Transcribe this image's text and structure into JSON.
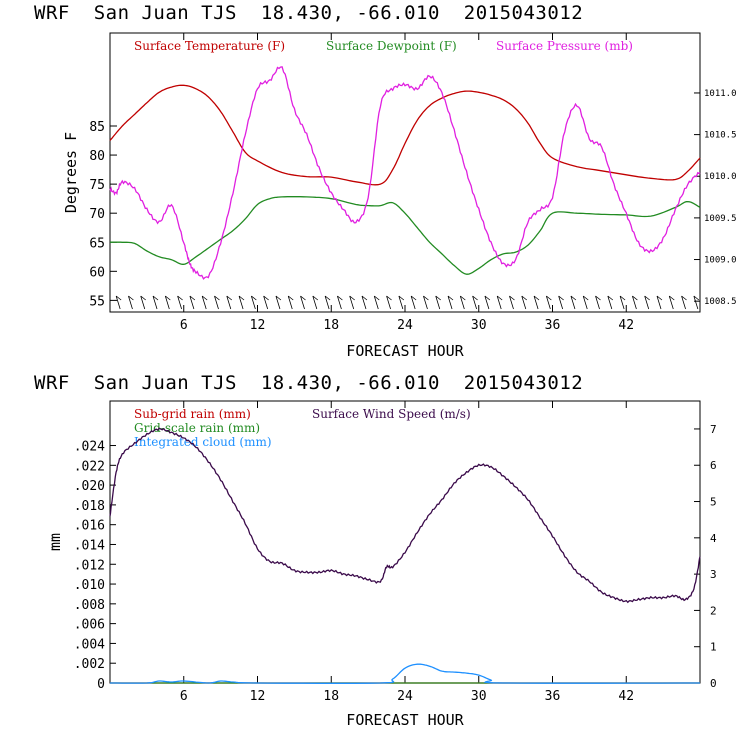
{
  "titles": {
    "top": "WRF  San Juan TJS  18.430, -66.010  2015043012",
    "bottom": "WRF  San Juan TJS  18.430, -66.010  2015043012"
  },
  "colors": {
    "temperature": "#c00000",
    "dewpoint": "#228b22",
    "pressure": "#e020e0",
    "subgrid_rain": "#c00000",
    "gridscale_rain": "#228b22",
    "cloud": "#1e90ff",
    "wind": "#3a0a4a"
  },
  "chart_data": [
    {
      "type": "line",
      "xlabel": "FORECAST HOUR",
      "ylabel": "Degrees F",
      "xlim": [
        0,
        48
      ],
      "ylim": [
        53,
        101
      ],
      "y2lim": [
        1008.37,
        1011.72
      ],
      "xticks": [
        "6",
        "12",
        "18",
        "24",
        "30",
        "36",
        "42"
      ],
      "yticks": [
        "55",
        "60",
        "65",
        "70",
        "75",
        "80",
        "85"
      ],
      "y2ticks": [
        "1008.5",
        "1009.0",
        "1009.5",
        "1010.0",
        "1010.5",
        "1011.0"
      ],
      "wind_barbs": "decorative wind barbs along bottom",
      "series": [
        {
          "name": "Surface Temperature (F)",
          "axis": "left",
          "x": [
            0,
            1,
            2,
            3,
            4,
            5,
            6,
            7,
            8,
            9,
            10,
            11,
            12,
            14,
            16,
            18,
            20,
            22,
            23,
            24,
            25,
            26,
            27,
            28,
            29,
            30,
            31,
            32,
            33,
            34,
            35,
            36,
            38,
            40,
            42,
            44,
            46,
            47,
            48
          ],
          "values": [
            82.5,
            85,
            87,
            89,
            90.8,
            91.7,
            92,
            91.4,
            90,
            87.5,
            84,
            80.5,
            79,
            77,
            76.3,
            76.2,
            75.4,
            75,
            77.5,
            82,
            86,
            88.5,
            89.8,
            90.6,
            91,
            90.8,
            90.3,
            89.5,
            88,
            85.5,
            82,
            79.5,
            78,
            77.3,
            76.6,
            76,
            75.8,
            77.2,
            79.5
          ]
        },
        {
          "name": "Surface Dewpoint (F)",
          "axis": "left",
          "x": [
            0,
            1,
            2,
            3,
            4,
            5,
            6,
            7,
            8,
            9,
            10,
            11,
            12,
            13,
            14,
            16,
            18,
            20,
            21,
            22,
            23,
            24,
            25,
            26,
            27,
            28,
            29,
            30,
            31,
            32,
            33,
            34,
            35,
            36,
            38,
            40,
            42,
            44,
            46,
            47,
            48
          ],
          "values": [
            65,
            65,
            64.8,
            63.5,
            62.5,
            62,
            61.2,
            62.5,
            64,
            65.5,
            67,
            69,
            71.5,
            72.5,
            72.8,
            72.8,
            72.5,
            71.5,
            71.3,
            71.3,
            71.8,
            70,
            67.5,
            65,
            63,
            61,
            59.5,
            60.5,
            62,
            63,
            63.3,
            64.5,
            67,
            70,
            70,
            69.8,
            69.7,
            69.5,
            71,
            72,
            71
          ]
        },
        {
          "name": "Surface Pressure (mb)",
          "axis": "right",
          "x": [
            0,
            0.5,
            1,
            2,
            3,
            4,
            5,
            6,
            6.5,
            7,
            8,
            9,
            10,
            11,
            12,
            13,
            14,
            15,
            16,
            17,
            18,
            19,
            20,
            21,
            22,
            23,
            24,
            25,
            26,
            27,
            28,
            29,
            30,
            31,
            32,
            33,
            34,
            35,
            36,
            37,
            38,
            39,
            40,
            41,
            42,
            43,
            44,
            45,
            46,
            47,
            48
          ],
          "values": [
            1009.85,
            1009.8,
            1009.93,
            1009.85,
            1009.6,
            1009.45,
            1009.65,
            1009.2,
            1008.95,
            1008.85,
            1008.8,
            1009.2,
            1009.8,
            1010.5,
            1011.05,
            1011.15,
            1011.3,
            1010.8,
            1010.5,
            1010.1,
            1009.8,
            1009.6,
            1009.45,
            1009.75,
            1010.85,
            1011.05,
            1011.1,
            1011.05,
            1011.2,
            1011.0,
            1010.55,
            1010.05,
            1009.6,
            1009.2,
            1008.95,
            1009.0,
            1009.45,
            1009.6,
            1009.75,
            1010.55,
            1010.85,
            1010.45,
            1010.35,
            1009.9,
            1009.55,
            1009.2,
            1009.1,
            1009.25,
            1009.6,
            1009.9,
            1010.05
          ]
        }
      ]
    },
    {
      "type": "line",
      "xlabel": "FORECAST HOUR",
      "ylabel": "mm",
      "xlim": [
        0,
        48
      ],
      "ylim": [
        0,
        0.0285
      ],
      "y2lim": [
        0,
        7.77
      ],
      "xticks": [
        "6",
        "12",
        "18",
        "24",
        "30",
        "36",
        "42"
      ],
      "yticks": [
        "0",
        ".002",
        ".004",
        ".006",
        ".008",
        ".010",
        ".012",
        ".014",
        ".016",
        ".018",
        ".020",
        ".022",
        ".024"
      ],
      "y2ticks": [
        "0",
        "1",
        "2",
        "3",
        "4",
        "5",
        "6",
        "7"
      ],
      "series": [
        {
          "name": "Sub-grid rain (mm)",
          "axis": "left",
          "x": [
            0,
            48
          ],
          "values": [
            0,
            0
          ]
        },
        {
          "name": "Grid-scale rain (mm)",
          "axis": "left",
          "x": [
            0,
            48
          ],
          "values": [
            0,
            0
          ]
        },
        {
          "name": "Integrated cloud (mm)",
          "axis": "left",
          "x": [
            0,
            3,
            4,
            5,
            6,
            8,
            9,
            10,
            12,
            22,
            23,
            24,
            25,
            26,
            27,
            28,
            29,
            30,
            31,
            32,
            48
          ],
          "values": [
            0,
            0,
            0.0002,
            0.0001,
            0.0002,
            0,
            0.0002,
            0.0001,
            0,
            0,
            0.0004,
            0.0015,
            0.0019,
            0.0017,
            0.0012,
            0.0011,
            0.001,
            0.0008,
            0.0003,
            0,
            0
          ]
        },
        {
          "name": "Surface Wind Speed (m/s)",
          "axis": "right",
          "x": [
            0,
            0.5,
            1,
            2,
            3,
            4,
            5,
            6,
            7,
            8,
            9,
            10,
            11,
            12,
            13,
            14,
            15,
            16,
            17,
            18,
            19,
            20,
            21,
            22,
            22.5,
            23,
            24,
            25,
            26,
            27,
            28,
            29,
            30,
            31,
            32,
            33,
            34,
            35,
            36,
            37,
            38,
            39,
            40,
            41,
            42,
            43,
            44,
            45,
            46,
            46.8,
            47.5,
            48
          ],
          "values": [
            4.6,
            5.8,
            6.3,
            6.6,
            6.85,
            7.0,
            6.9,
            6.75,
            6.5,
            6.1,
            5.6,
            5.0,
            4.4,
            3.7,
            3.35,
            3.3,
            3.1,
            3.05,
            3.05,
            3.1,
            3.0,
            2.95,
            2.85,
            2.8,
            3.2,
            3.2,
            3.6,
            4.15,
            4.65,
            5.05,
            5.5,
            5.8,
            6.0,
            5.95,
            5.7,
            5.4,
            5.05,
            4.55,
            4.05,
            3.5,
            3.05,
            2.8,
            2.5,
            2.35,
            2.25,
            2.3,
            2.35,
            2.35,
            2.4,
            2.3,
            2.6,
            3.5
          ]
        }
      ]
    }
  ]
}
